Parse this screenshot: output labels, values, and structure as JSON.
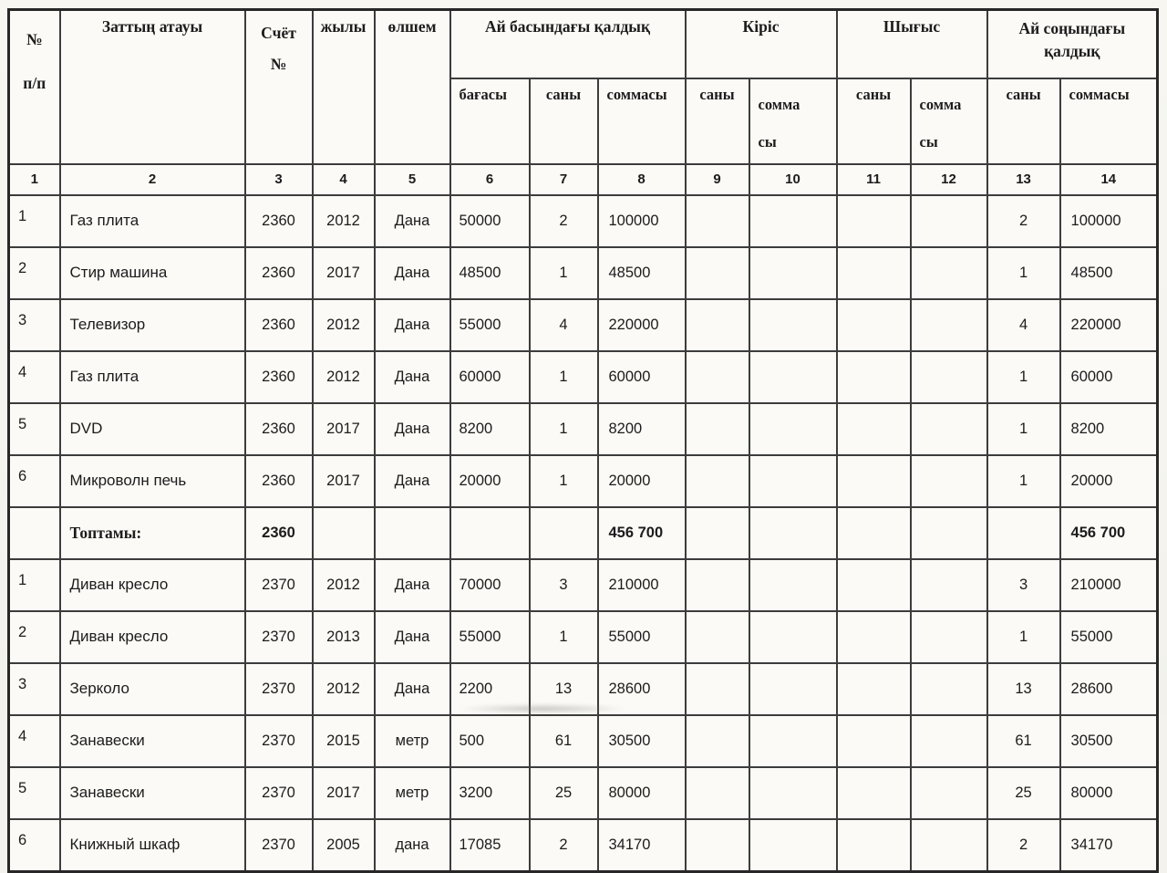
{
  "page": {
    "paper_color": "#f7f6f1",
    "line_color": "#3c3c3c",
    "text_color": "#1c1c1c"
  },
  "table": {
    "header": {
      "c1": "№\nп/п",
      "c2": "Заттың атауы",
      "c3": "Счёт\n№",
      "c4": "жылы",
      "c5": "өлшем",
      "g1": "Ай басындағы қалдық",
      "g2": "Кіріс",
      "g3": "Шығыс",
      "g4": "Ай соңындағы\nқалдық",
      "sub": [
        "бағасы",
        "саны",
        "соммасы",
        "саны",
        "сомма\nсы",
        "саны",
        "сомма\nсы",
        "саны",
        "соммасы"
      ],
      "nums": [
        "1",
        "2",
        "3",
        "4",
        "5",
        "6",
        "7",
        "8",
        "9",
        "10",
        "11",
        "12",
        "13",
        "14"
      ]
    },
    "total_row_index": 6,
    "rows": [
      [
        "1",
        "Газ плита",
        "2360",
        "2012",
        "Дана",
        "50000",
        "2",
        "100000",
        "",
        "",
        "",
        "",
        "2",
        "100000"
      ],
      [
        "2",
        "Стир машина",
        "2360",
        "2017",
        "Дана",
        "48500",
        "1",
        "48500",
        "",
        "",
        "",
        "",
        "1",
        "48500"
      ],
      [
        "3",
        "Телевизор",
        "2360",
        "2012",
        "Дана",
        "55000",
        "4",
        "220000",
        "",
        "",
        "",
        "",
        "4",
        "220000"
      ],
      [
        "4",
        "Газ плита",
        "2360",
        "2012",
        "Дана",
        "60000",
        "1",
        "60000",
        "",
        "",
        "",
        "",
        "1",
        "60000"
      ],
      [
        "5",
        "DVD",
        "2360",
        "2017",
        "Дана",
        "8200",
        "1",
        "8200",
        "",
        "",
        "",
        "",
        "1",
        "8200"
      ],
      [
        "6",
        "Микроволн печь",
        "2360",
        "2017",
        "Дана",
        "20000",
        "1",
        "20000",
        "",
        "",
        "",
        "",
        "1",
        "20000"
      ],
      [
        "",
        "Топтамы:",
        "2360",
        "",
        "",
        "",
        "",
        "456 700",
        "",
        "",
        "",
        "",
        "",
        "456 700"
      ],
      [
        "1",
        "Диван кресло",
        "2370",
        "2012",
        "Дана",
        "70000",
        "3",
        "210000",
        "",
        "",
        "",
        "",
        "3",
        "210000"
      ],
      [
        "2",
        "Диван кресло",
        "2370",
        "2013",
        "Дана",
        "55000",
        "1",
        "55000",
        "",
        "",
        "",
        "",
        "1",
        "55000"
      ],
      [
        "3",
        "Зерколо",
        "2370",
        "2012",
        "Дана",
        "2200",
        "13",
        "28600",
        "",
        "",
        "",
        "",
        "13",
        "28600"
      ],
      [
        "4",
        "Занавески",
        "2370",
        "2015",
        "метр",
        "500",
        "61",
        "30500",
        "",
        "",
        "",
        "",
        "61",
        "30500"
      ],
      [
        "5",
        "Занавески",
        "2370",
        "2017",
        "метр",
        "3200",
        "25",
        "80000",
        "",
        "",
        "",
        "",
        "25",
        "80000"
      ],
      [
        "6",
        "Книжный шкаф",
        "2370",
        "2005",
        "дана",
        "17085",
        "2",
        "34170",
        "",
        "",
        "",
        "",
        "2",
        "34170"
      ]
    ]
  }
}
